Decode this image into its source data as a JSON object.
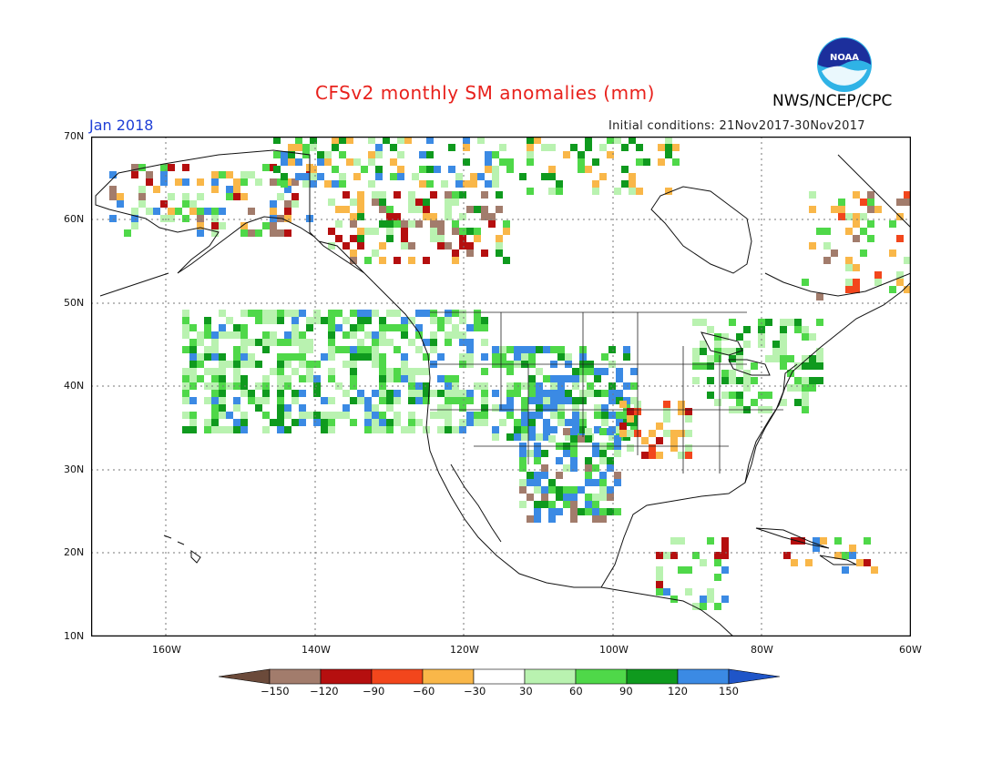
{
  "header": {
    "title": "CFSv2 monthly SM anomalies (mm)",
    "month": "Jan 2018",
    "initial_conditions": "Initial conditions: 21Nov2017-30Nov2017",
    "agency": "NWS/NCEP/CPC",
    "logo_text": "NOAA"
  },
  "map": {
    "lat_labels": [
      "70N",
      "60N",
      "50N",
      "40N",
      "30N",
      "20N",
      "10N"
    ],
    "lon_labels": [
      "160W",
      "140W",
      "120W",
      "100W",
      "80W",
      "60W"
    ]
  },
  "colorbar": {
    "labels": [
      "−150",
      "−120",
      "−90",
      "−60",
      "−30",
      "30",
      "60",
      "90",
      "120",
      "150"
    ],
    "colors": [
      "#6b4a3a",
      "#a27c6c",
      "#b50f0f",
      "#f2461c",
      "#f9b749",
      "#ffffff",
      "#b9f2b0",
      "#4fd849",
      "#0f9a1e",
      "#3b8ae4",
      "#1f55c8"
    ]
  }
}
